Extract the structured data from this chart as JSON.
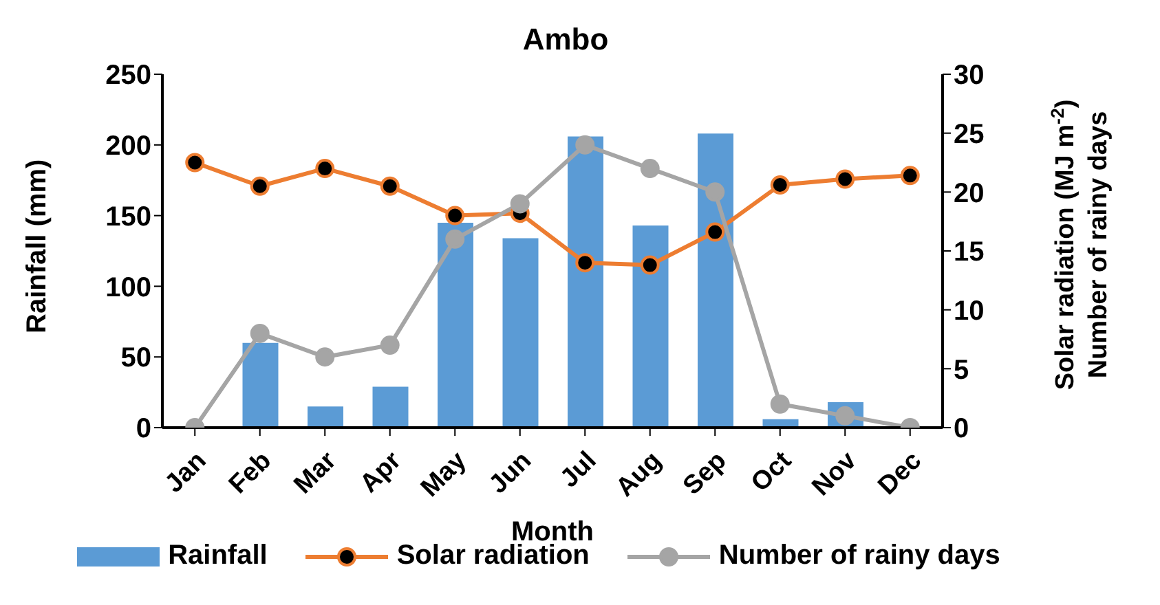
{
  "chart_data": {
    "type": "bar",
    "title": "Ambo",
    "xlabel": "Month",
    "ylabel": "Rainfall (mm)",
    "y2label": "Solar radiation (MJ m$^{-2}$)\nNumber of rainy days",
    "categories": [
      "Jan",
      "Feb",
      "Mar",
      "Apr",
      "May",
      "Jun",
      "Jul",
      "Aug",
      "Sep",
      "Oct",
      "Nov",
      "Dec"
    ],
    "series": [
      {
        "name": "Rainfall",
        "color": "#5b9bd5",
        "values": [
          0,
          60,
          15,
          29,
          145,
          134,
          206,
          143,
          208,
          6,
          18,
          0
        ]
      },
      {
        "name": "Solar radiation",
        "type": "line",
        "axis": "y2",
        "color": "#ed7d31",
        "marker": "circle",
        "values": [
          22.5,
          20.5,
          22,
          20.5,
          18,
          18.2,
          14,
          13.8,
          16.6,
          20.6,
          21.1,
          21.4
        ]
      },
      {
        "name": "Number of rainy days",
        "type": "line",
        "axis": "y2",
        "color": "#a5a5a5",
        "marker": "circle",
        "values": [
          0,
          8,
          6,
          7,
          16,
          19,
          24,
          22,
          20,
          2,
          1,
          0
        ]
      }
    ],
    "ylim": [
      0,
      250
    ],
    "yticks": [
      0,
      50,
      100,
      150,
      200,
      250
    ],
    "y2lim": [
      0,
      30
    ],
    "y2ticks": [
      0,
      5,
      10,
      15,
      20,
      25,
      30
    ],
    "grid": false,
    "legend": "bottom"
  }
}
